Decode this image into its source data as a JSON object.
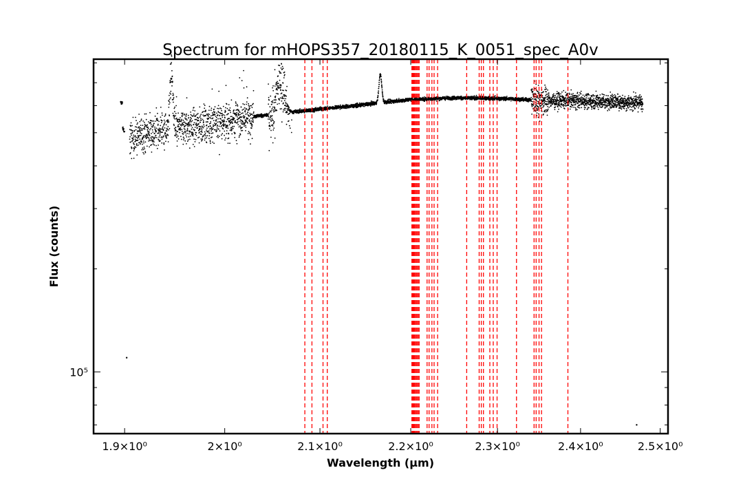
{
  "chart_data": {
    "type": "scatter",
    "title": "Spectrum for mHOPS357_20180115_K_0051_spec_A0v",
    "xlabel": "Wavelength (μm)",
    "ylabel": "Flux (counts)",
    "xscale": "log",
    "yscale": "log",
    "xlim": [
      1.87,
      2.51
    ],
    "ylim": [
      66000,
      820000
    ],
    "grid": false,
    "x_ticks": [
      {
        "value": 1.9,
        "label": "1.9×10⁰"
      },
      {
        "value": 2.0,
        "label": "2×10⁰"
      },
      {
        "value": 2.1,
        "label": "2.1×10⁰"
      },
      {
        "value": 2.2,
        "label": "2.2×10⁰"
      },
      {
        "value": 2.3,
        "label": "2.3×10⁰"
      },
      {
        "value": 2.4,
        "label": "2.4×10⁰"
      },
      {
        "value": 2.5,
        "label": "2.5×10⁰"
      }
    ],
    "y_major_ticks": [
      {
        "value": 100000,
        "label": "10⁵"
      }
    ],
    "y_minor_ticks": [
      70000,
      80000,
      90000,
      200000,
      300000,
      400000,
      500000,
      600000,
      700000,
      800000
    ],
    "series": [
      {
        "marker_color": "#000000",
        "continuum": [
          [
            1.898,
            515000
          ],
          [
            1.905,
            478000
          ],
          [
            1.92,
            500000
          ],
          [
            1.94,
            510000
          ],
          [
            1.96,
            520000
          ],
          [
            1.98,
            530000
          ],
          [
            2.0,
            540000
          ],
          [
            2.02,
            555000
          ],
          [
            2.05,
            565000
          ],
          [
            2.08,
            578000
          ],
          [
            2.11,
            590000
          ],
          [
            2.14,
            600000
          ],
          [
            2.16,
            610000
          ],
          [
            2.2,
            625000
          ],
          [
            2.25,
            632000
          ],
          [
            2.3,
            630000
          ],
          [
            2.35,
            622000
          ],
          [
            2.4,
            620000
          ],
          [
            2.45,
            615000
          ],
          [
            2.478,
            612000
          ]
        ],
        "segments": [
          [
            1.896,
            1.9
          ],
          [
            1.905,
            2.478
          ]
        ],
        "scatter_regions": [
          {
            "x_range": [
              1.905,
              2.03
            ],
            "spread": 0.12
          },
          {
            "x_range": [
              2.045,
              2.065
            ],
            "spread": 0.15
          },
          {
            "x_range": [
              2.34,
              2.36
            ],
            "spread": 0.1
          },
          {
            "x_range": [
              2.36,
              2.478
            ],
            "spread": 0.05
          }
        ],
        "emission_features": [
          {
            "x": 1.946,
            "peak": 740000
          },
          {
            "x": 2.166,
            "peak": 740000
          },
          {
            "x": 2.058,
            "peak": 720000
          }
        ],
        "outliers": [
          [
            1.902,
            110000
          ],
          [
            2.47,
            70000
          ]
        ]
      }
    ],
    "vertical_lines": {
      "color": "#ff0000",
      "style": "dashed",
      "x": [
        2.0838,
        2.0914,
        2.1033,
        2.1079,
        2.2013,
        2.2022,
        2.2031,
        2.204,
        2.205,
        2.2062,
        2.2072,
        2.2085,
        2.2095,
        2.2185,
        2.2208,
        2.224,
        2.2265,
        2.2305,
        2.264,
        2.2785,
        2.281,
        2.2835,
        2.291,
        2.295,
        2.2995,
        2.3225,
        2.3435,
        2.346,
        2.3495,
        2.3525,
        2.3845
      ]
    }
  }
}
